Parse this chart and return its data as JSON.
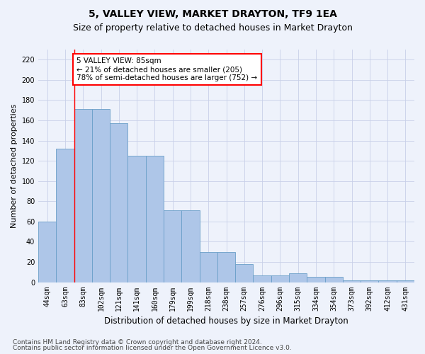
{
  "title": "5, VALLEY VIEW, MARKET DRAYTON, TF9 1EA",
  "subtitle": "Size of property relative to detached houses in Market Drayton",
  "xlabel": "Distribution of detached houses by size in Market Drayton",
  "ylabel": "Number of detached properties",
  "categories": [
    "44sqm",
    "63sqm",
    "83sqm",
    "102sqm",
    "121sqm",
    "141sqm",
    "160sqm",
    "179sqm",
    "199sqm",
    "218sqm",
    "238sqm",
    "257sqm",
    "276sqm",
    "296sqm",
    "315sqm",
    "334sqm",
    "354sqm",
    "373sqm",
    "392sqm",
    "412sqm",
    "431sqm"
  ],
  "bar_values": [
    60,
    132,
    171,
    171,
    157,
    125,
    125,
    71,
    71,
    30,
    30,
    18,
    7,
    7,
    9,
    5,
    5,
    2,
    2,
    2,
    2
  ],
  "bar_color": "#aec6e8",
  "bar_edge_color": "#6a9fc8",
  "red_line_index": 2,
  "annotation_text": "5 VALLEY VIEW: 85sqm\n← 21% of detached houses are smaller (205)\n78% of semi-detached houses are larger (752) →",
  "annotation_box_color": "white",
  "annotation_box_edge_color": "red",
  "ylim": [
    0,
    230
  ],
  "yticks": [
    0,
    20,
    40,
    60,
    80,
    100,
    120,
    140,
    160,
    180,
    200,
    220
  ],
  "footer1": "Contains HM Land Registry data © Crown copyright and database right 2024.",
  "footer2": "Contains public sector information licensed under the Open Government Licence v3.0.",
  "background_color": "#eef2fb",
  "grid_color": "#c8d0e8",
  "title_fontsize": 10,
  "subtitle_fontsize": 9,
  "xlabel_fontsize": 8.5,
  "ylabel_fontsize": 8,
  "tick_fontsize": 7,
  "footer_fontsize": 6.5,
  "annot_fontsize": 7.5
}
